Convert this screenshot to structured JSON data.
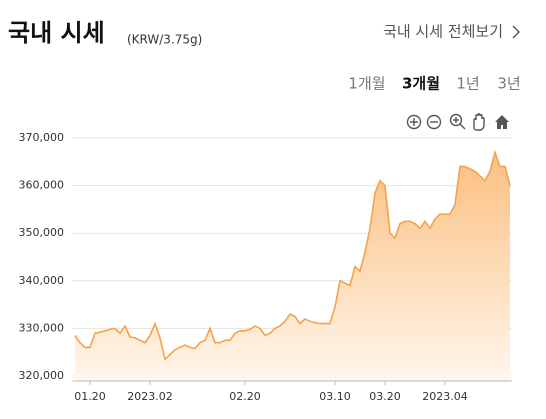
{
  "header": {
    "title": "국내 시세",
    "unit": "(KRW/3.75g)",
    "link": "국내 시세 전체보기"
  },
  "tabs": [
    "1개월",
    "3개월",
    "1년",
    "3년"
  ],
  "selected_tab": 1,
  "chart_data": {
    "type": "area",
    "color": "#f5a24a",
    "grid": true,
    "categories": [
      null,
      null,
      null,
      "01.20",
      null,
      null,
      null,
      null,
      null,
      null,
      null,
      null,
      null,
      null,
      null,
      "2023.02",
      null,
      null,
      null,
      null,
      null,
      null,
      null,
      null,
      null,
      null,
      null,
      null,
      null,
      null,
      null,
      null,
      null,
      null,
      "02.20",
      null,
      null,
      null,
      null,
      null,
      null,
      null,
      null,
      null,
      null,
      null,
      null,
      null,
      null,
      null,
      null,
      null,
      "03.10",
      null,
      null,
      null,
      null,
      null,
      null,
      null,
      null,
      null,
      "03.20",
      null,
      null,
      null,
      null,
      null,
      null,
      null,
      null,
      null,
      null,
      null,
      "2023.04",
      null,
      null,
      null,
      null,
      null,
      null,
      null,
      null,
      null,
      null,
      null,
      null,
      null
    ],
    "values": [
      328500,
      327000,
      326000,
      326000,
      329000,
      329200,
      329500,
      329800,
      330000,
      329000,
      330500,
      328200,
      328000,
      327500,
      327000,
      328500,
      331000,
      328000,
      323500,
      324500,
      325500,
      326000,
      326500,
      326000,
      325800,
      327000,
      327500,
      330000,
      327000,
      327000,
      327500,
      327500,
      329000,
      329500,
      329500,
      329800,
      330500,
      330000,
      328500,
      329000,
      330000,
      330500,
      331500,
      333000,
      332500,
      331000,
      332000,
      331500,
      331200,
      331000,
      331000,
      331000,
      334500,
      340000,
      339500,
      339000,
      343000,
      342000,
      346000,
      351000,
      358500,
      361000,
      360000,
      350000,
      349000,
      352000,
      352500,
      352500,
      352000,
      351000,
      352500,
      351000,
      353000,
      354000,
      354000,
      354000,
      356000,
      364000,
      364000,
      363500,
      363000,
      362000,
      361000,
      363000,
      367000,
      364000,
      364000,
      360000
    ],
    "ylim": [
      320000,
      370000
    ],
    "yticks": [
      {
        "value": 320000,
        "label": "320,000"
      },
      {
        "value": 330000,
        "label": "330,000"
      },
      {
        "value": 340000,
        "label": "340,000"
      },
      {
        "value": 350000,
        "label": "350,000"
      },
      {
        "value": 360000,
        "label": "360,000"
      },
      {
        "value": 370000,
        "label": "370,000"
      }
    ]
  }
}
